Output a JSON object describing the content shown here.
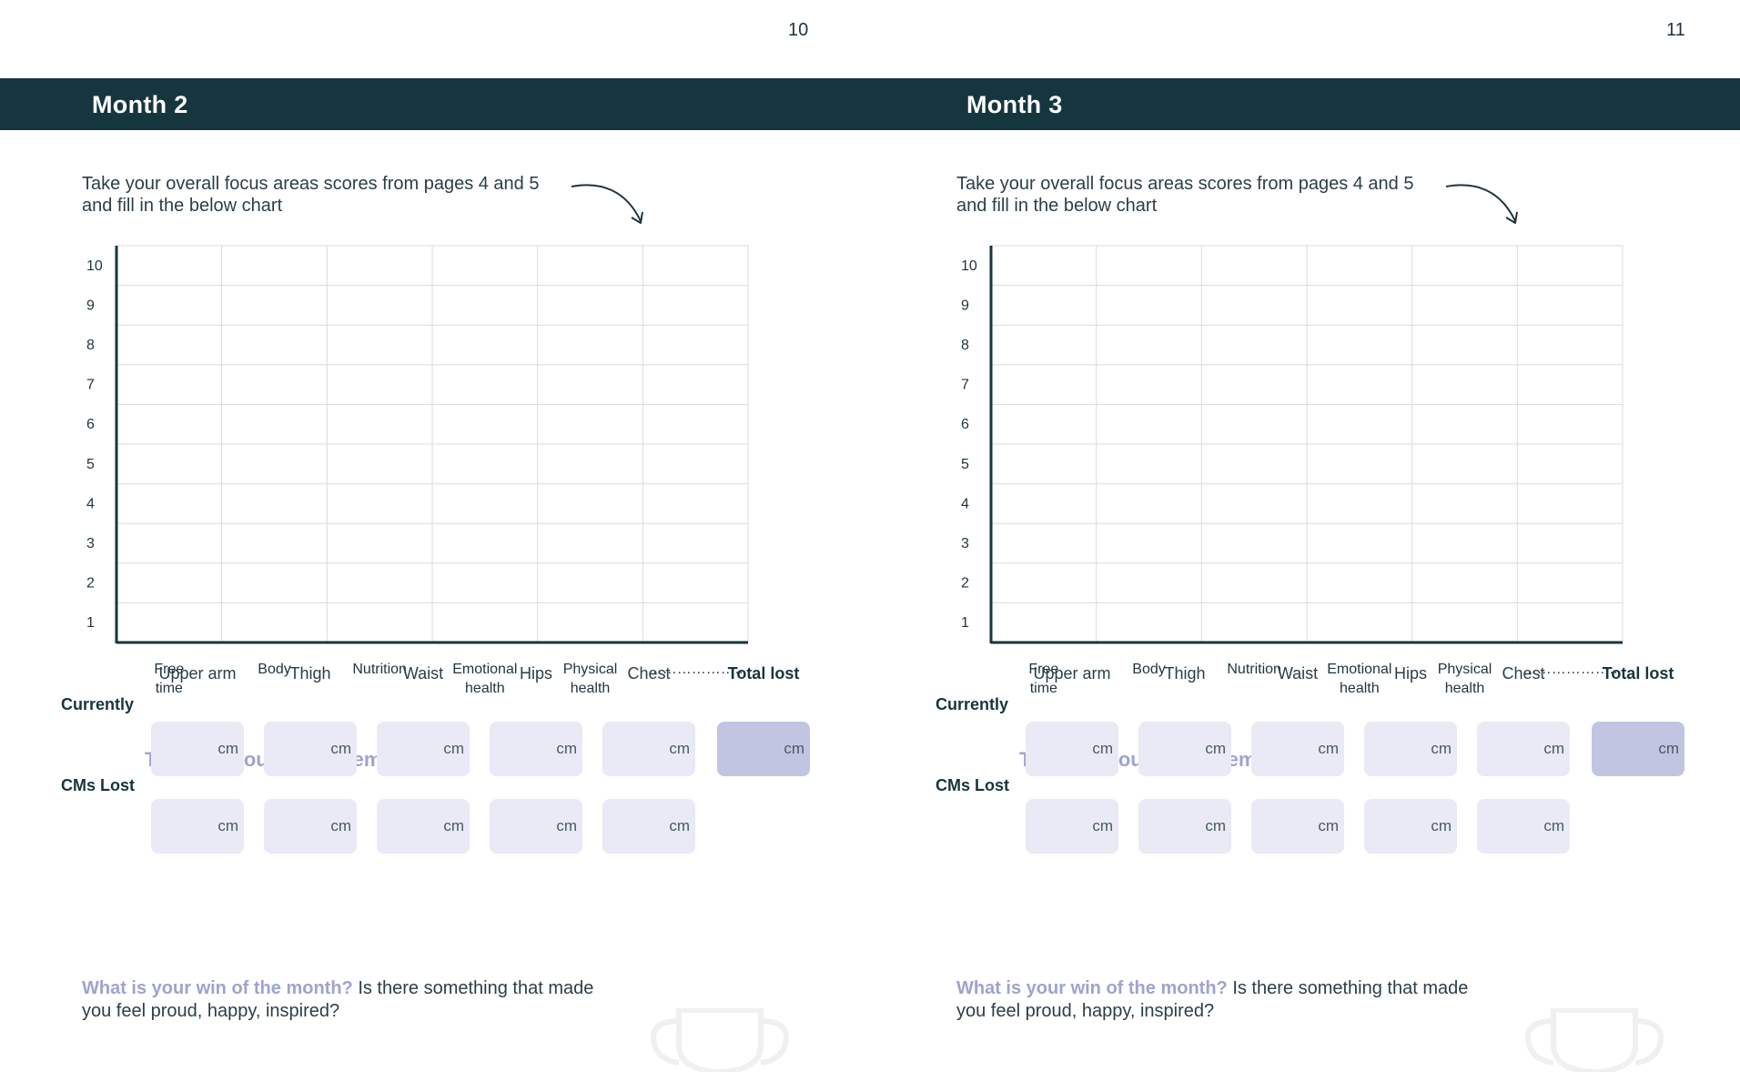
{
  "page_numbers": {
    "left": "10",
    "right": "11"
  },
  "colors": {
    "header_band": "#15363f",
    "accent_lavender": "#9ea3d0",
    "cell_fill": "#e9eaf5",
    "total_cell_fill": "#c2c5e2"
  },
  "pages": [
    {
      "month_title": "Month 2",
      "intro": "Take your overall focus areas scores from pages 4 and 5 and fill in the below chart",
      "chart": {
        "y_ticks": [
          "10",
          "9",
          "8",
          "7",
          "6",
          "5",
          "4",
          "3",
          "2",
          "1"
        ],
        "categories": [
          [
            "Free",
            "time"
          ],
          [
            "Body"
          ],
          [
            "Nutrition"
          ],
          [
            "Emotional",
            "health"
          ],
          [
            "Physical",
            "health"
          ],
          [
            "……………….."
          ]
        ]
      },
      "tracking": {
        "title": "Tracking your measurements",
        "columns": [
          "Upper arm",
          "Thigh",
          "Waist",
          "Hips",
          "Chest",
          "Total lost"
        ],
        "rows": [
          "Currently",
          "CMs Lost"
        ],
        "unit": "cm"
      },
      "win": {
        "highlight": "What is your win of the month?",
        "rest": " Is there something that made you feel proud, happy, inspired?"
      }
    },
    {
      "month_title": "Month 3",
      "intro": "Take your overall focus areas scores from pages 4 and 5 and fill in the below chart",
      "chart": {
        "y_ticks": [
          "10",
          "9",
          "8",
          "7",
          "6",
          "5",
          "4",
          "3",
          "2",
          "1"
        ],
        "categories": [
          [
            "Free",
            "time"
          ],
          [
            "Body"
          ],
          [
            "Nutrition"
          ],
          [
            "Emotional",
            "health"
          ],
          [
            "Physical",
            "health"
          ],
          [
            "……………….."
          ]
        ]
      },
      "tracking": {
        "title": "Tracking your measurements",
        "columns": [
          "Upper arm",
          "Thigh",
          "Waist",
          "Hips",
          "Chest",
          "Total lost"
        ],
        "rows": [
          "Currently",
          "CMs Lost"
        ],
        "unit": "cm"
      },
      "win": {
        "highlight": "What is your win of the month?",
        "rest": " Is there something that made you feel proud, happy, inspired?"
      }
    }
  ]
}
